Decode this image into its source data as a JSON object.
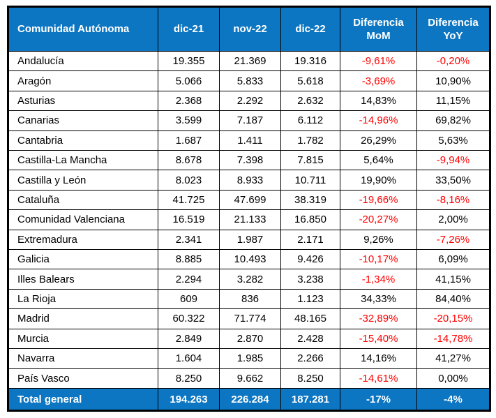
{
  "colors": {
    "header_bg": "#0C76C2",
    "header_text": "#FFFFFF",
    "negative": "#FF0000",
    "border": "#000000"
  },
  "chart_data": {
    "type": "table",
    "columns": [
      "Comunidad Autónoma",
      "dic-21",
      "nov-22",
      "dic-22",
      "Diferencia MoM",
      "Diferencia YoY"
    ],
    "rows": [
      [
        "Andalucía",
        "19.355",
        "21.369",
        "19.316",
        "-9,61%",
        "-0,20%"
      ],
      [
        "Aragón",
        "5.066",
        "5.833",
        "5.618",
        "-3,69%",
        "10,90%"
      ],
      [
        "Asturias",
        "2.368",
        "2.292",
        "2.632",
        "14,83%",
        "11,15%"
      ],
      [
        "Canarias",
        "3.599",
        "7.187",
        "6.112",
        "-14,96%",
        "69,82%"
      ],
      [
        "Cantabria",
        "1.687",
        "1.411",
        "1.782",
        "26,29%",
        "5,63%"
      ],
      [
        "Castilla-La Mancha",
        "8.678",
        "7.398",
        "7.815",
        "5,64%",
        "-9,94%"
      ],
      [
        "Castilla y León",
        "8.023",
        "8.933",
        "10.711",
        "19,90%",
        "33,50%"
      ],
      [
        "Cataluña",
        "41.725",
        "47.699",
        "38.319",
        "-19,66%",
        "-8,16%"
      ],
      [
        "Comunidad Valenciana",
        "16.519",
        "21.133",
        "16.850",
        "-20,27%",
        "2,00%"
      ],
      [
        "Extremadura",
        "2.341",
        "1.987",
        "2.171",
        "9,26%",
        "-7,26%"
      ],
      [
        "Galicia",
        "8.885",
        "10.493",
        "9.426",
        "-10,17%",
        "6,09%"
      ],
      [
        "Illes Balears",
        "2.294",
        "3.282",
        "3.238",
        "-1,34%",
        "41,15%"
      ],
      [
        "La Rioja",
        "609",
        "836",
        "1.123",
        "34,33%",
        "84,40%"
      ],
      [
        "Madrid",
        "60.322",
        "71.774",
        "48.165",
        "-32,89%",
        "-20,15%"
      ],
      [
        "Murcia",
        "2.849",
        "2.870",
        "2.428",
        "-15,40%",
        "-14,78%"
      ],
      [
        "Navarra",
        "1.604",
        "1.985",
        "2.266",
        "14,16%",
        "41,27%"
      ],
      [
        "País Vasco",
        "8.250",
        "9.662",
        "8.250",
        "-14,61%",
        "0,00%"
      ]
    ],
    "total_row": [
      "Total general",
      "194.263",
      "226.284",
      "187.281",
      "-17%",
      "-4%"
    ]
  }
}
